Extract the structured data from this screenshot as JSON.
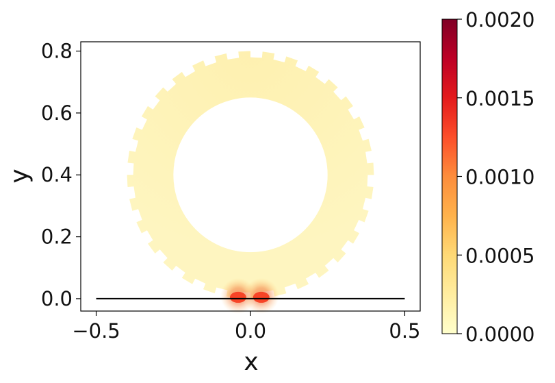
{
  "chart_data": {
    "type": "heatmap",
    "title": "",
    "xlabel": "x",
    "ylabel": "y",
    "xlim": [
      -0.55,
      0.55
    ],
    "ylim": [
      -0.04,
      0.83
    ],
    "x_ticks": [
      {
        "value": -0.5,
        "label": "−0.5"
      },
      {
        "value": 0.0,
        "label": "0.0"
      },
      {
        "value": 0.5,
        "label": "0.5"
      }
    ],
    "y_ticks": [
      {
        "value": 0.0,
        "label": "0.0"
      },
      {
        "value": 0.2,
        "label": "0.2"
      },
      {
        "value": 0.4,
        "label": "0.4"
      },
      {
        "value": 0.6,
        "label": "0.6"
      },
      {
        "value": 0.8,
        "label": "0.8"
      }
    ],
    "gear": {
      "center": [
        0.0,
        0.4
      ],
      "inner_radius": 0.25,
      "outer_radius": 0.4,
      "tooth_depth": 0.02,
      "teeth": 32,
      "base_value": 0.0001
    },
    "hotspots": [
      {
        "x": -0.04,
        "y": 0.0,
        "value": 0.0013
      },
      {
        "x": 0.035,
        "y": 0.0,
        "value": 0.0013
      }
    ],
    "ground_line": {
      "x": [
        -0.5,
        0.5
      ],
      "y": 0.0,
      "color": "#000000"
    },
    "colorbar": {
      "colormap": "YlOrRd",
      "min": 0.0,
      "max": 0.002,
      "colors": [
        "#ffffcc",
        "#ffeda0",
        "#fed976",
        "#feb24c",
        "#fd8d3c",
        "#fc4e2a",
        "#e31a1c",
        "#bd0026",
        "#800026"
      ],
      "ticks": [
        {
          "value": 0.0,
          "label": "0.0000"
        },
        {
          "value": 0.0005,
          "label": "0.0005"
        },
        {
          "value": 0.001,
          "label": "0.0010"
        },
        {
          "value": 0.0015,
          "label": "0.0015"
        },
        {
          "value": 0.002,
          "label": "0.0020"
        }
      ]
    }
  }
}
